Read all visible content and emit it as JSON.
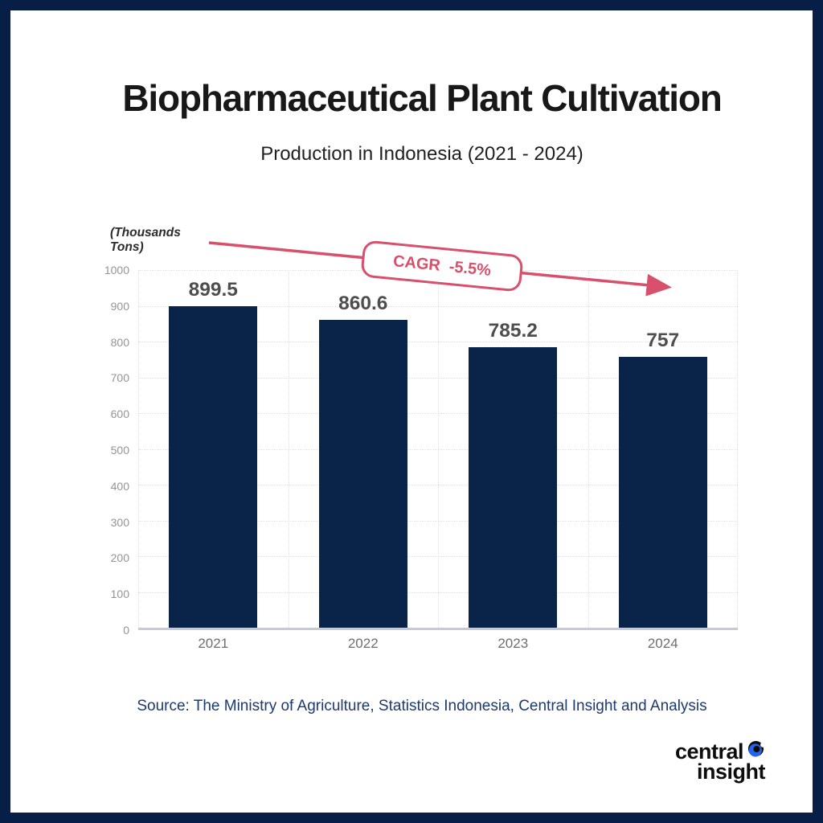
{
  "frame": {
    "border_color": "#071f47",
    "panel_background": "#ffffff"
  },
  "header": {
    "title": "Biopharmaceutical Plant Cultivation",
    "subtitle": "Production in Indonesia (2021 - 2024)"
  },
  "chart_data": {
    "type": "bar",
    "title": "Biopharmaceutical Plant Cultivation",
    "subtitle": "Production in Indonesia (2021 - 2024)",
    "categories": [
      "2021",
      "2022",
      "2023",
      "2024"
    ],
    "values": [
      899.5,
      860.6,
      785.2,
      757
    ],
    "value_labels": [
      "899.5",
      "860.6",
      "785.2",
      "757"
    ],
    "ylabel": "(Thousands Tons)",
    "ylabel_lines": [
      "(Thousands",
      "Tons)"
    ],
    "xlabel": "",
    "ylim": [
      0,
      1000
    ],
    "ytick_step": 100,
    "grid": "dotted",
    "legend": "none",
    "bar_color": "#0a2348",
    "annotation": {
      "label": "CAGR  -5.5%",
      "color": "#d8506b"
    }
  },
  "source": {
    "text": "Source: The Ministry of Agriculture, Statistics Indonesia, Central Insight and Analysis",
    "color": "#1d3a6e"
  },
  "logo": {
    "line1": "central",
    "line2": "insight",
    "icon": "eye-icon",
    "icon_color": "#2563eb"
  }
}
